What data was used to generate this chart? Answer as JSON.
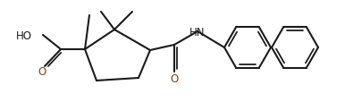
{
  "bg_color": "#ffffff",
  "line_color": "#1a1a1a",
  "o_color": "#8B4000",
  "n_color": "#1a1a1a",
  "lw": 1.5,
  "lw_thin": 1.3,
  "figsize": [
    3.86,
    1.15
  ],
  "dpi": 100,
  "xlim": [
    0,
    386
  ],
  "ylim": [
    0,
    115
  ],
  "ho_label": "HO",
  "hn_label": "HN",
  "o_label": "O",
  "ho_fontsize": 8.5,
  "hn_fontsize": 8.5,
  "o_fontsize": 8.5
}
